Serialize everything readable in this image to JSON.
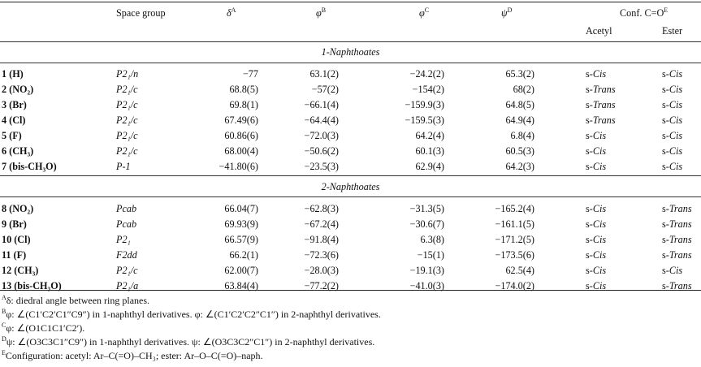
{
  "headers": {
    "space_group": "Space group",
    "delta": "δ",
    "delta_sup": "A",
    "phi_b": "φ",
    "phi_b_sup": "B",
    "phi_c": "φ",
    "phi_c_sup": "C",
    "psi": "ψ",
    "psi_sup": "D",
    "conf": "Conf. C=O",
    "conf_sup": "E",
    "acetyl": "Acetyl",
    "ester": "Ester"
  },
  "sections": [
    {
      "title": "1-Naphthoates",
      "rows": [
        {
          "compound": "1 (H)",
          "space_group": "P2₁/n",
          "delta": "−77",
          "phi_b": "63.1(2)",
          "phi_c": "−24.2(2)",
          "psi": "65.3(2)",
          "acetyl": "s-Cis",
          "ester": "s-Cis"
        },
        {
          "compound": "2 (NO₂)",
          "space_group": "P2₁/c",
          "delta": "68.8(5)",
          "phi_b": "−57(2)",
          "phi_c": "−154(2)",
          "psi": "68(2)",
          "acetyl": "s-Trans",
          "ester": "s-Cis"
        },
        {
          "compound": "3 (Br)",
          "space_group": "P2₁/c",
          "delta": "69.8(1)",
          "phi_b": "−66.1(4)",
          "phi_c": "−159.9(3)",
          "psi": "64.8(5)",
          "acetyl": "s-Trans",
          "ester": "s-Cis"
        },
        {
          "compound": "4 (Cl)",
          "space_group": "P2₁/c",
          "delta": "67.49(6)",
          "phi_b": "−64.4(4)",
          "phi_c": "−159.5(3)",
          "psi": "64.9(4)",
          "acetyl": "s-Trans",
          "ester": "s-Cis"
        },
        {
          "compound": "5 (F)",
          "space_group": "P2₁/c",
          "delta": "60.86(6)",
          "phi_b": "−72.0(3)",
          "phi_c": "64.2(4)",
          "psi": "6.8(4)",
          "acetyl": "s-Cis",
          "ester": "s-Cis"
        },
        {
          "compound": "6 (CH₃)",
          "space_group": "P2₁/c",
          "delta": "68.00(4)",
          "phi_b": "−50.6(2)",
          "phi_c": "60.1(3)",
          "psi": "60.5(3)",
          "acetyl": "s-Cis",
          "ester": "s-Cis"
        },
        {
          "compound": "7 (bis-CH₃O)",
          "space_group": "P-1",
          "delta": "−41.80(6)",
          "phi_b": "−23.5(3)",
          "phi_c": "62.9(4)",
          "psi": "64.2(3)",
          "acetyl": "s-Cis",
          "ester": "s-Cis"
        }
      ]
    },
    {
      "title": "2-Naphthoates",
      "rows": [
        {
          "compound": "8 (NO₂)",
          "space_group": "Pcab",
          "delta": "66.04(7)",
          "phi_b": "−62.8(3)",
          "phi_c": "−31.3(5)",
          "psi": "−165.2(4)",
          "acetyl": "s-Cis",
          "ester": "s-Trans"
        },
        {
          "compound": "9 (Br)",
          "space_group": "Pcab",
          "delta": "69.93(9)",
          "phi_b": "−67.2(4)",
          "phi_c": "−30.6(7)",
          "psi": "−161.1(5)",
          "acetyl": "s-Cis",
          "ester": "s-Trans"
        },
        {
          "compound": "10 (Cl)",
          "space_group": "P2₁",
          "delta": "66.57(9)",
          "phi_b": "−91.8(4)",
          "phi_c": "6.3(8)",
          "psi": "−171.2(5)",
          "acetyl": "s-Cis",
          "ester": "s-Trans"
        },
        {
          "compound": "11 (F)",
          "space_group": "F2dd",
          "delta": "66.2(1)",
          "phi_b": "−72.3(6)",
          "phi_c": "−15(1)",
          "psi": "−173.5(6)",
          "acetyl": "s-Cis",
          "ester": "s-Trans"
        },
        {
          "compound": "12 (CH₃)",
          "space_group": "P2₁/c",
          "delta": "62.00(7)",
          "phi_b": "−28.0(3)",
          "phi_c": "−19.1(3)",
          "psi": "62.5(4)",
          "acetyl": "s-Cis",
          "ester": "s-Cis"
        },
        {
          "compound": "13 (bis-CH₃O)",
          "space_group": "P2₁/a",
          "delta": "63.84(4)",
          "phi_b": "−77.2(2)",
          "phi_c": "−41.0(3)",
          "psi": "−174.0(2)",
          "acetyl": "s-Cis",
          "ester": "s-Trans"
        }
      ]
    }
  ],
  "footnotes": [
    {
      "mark": "A",
      "text": "δ: diedral angle between ring planes."
    },
    {
      "mark": "B",
      "text": "φ: ∠(C1′C2′C1″C9″) in 1-naphthyl derivatives. φ: ∠(C1′C2′C2″C1″) in 2-naphthyl derivatives."
    },
    {
      "mark": "C",
      "text": "φ: ∠(O1C1C1′C2′)."
    },
    {
      "mark": "D",
      "text": "ψ: ∠(O3C3C1″C9″) in 1-naphthyl derivatives. ψ: ∠(O3C3C2″C1″) in 2-naphthyl derivatives."
    },
    {
      "mark": "E",
      "text": "Configuration: acetyl: Ar–C(=O)–CH₃; ester: Ar–O–C(=O)–naph."
    }
  ]
}
